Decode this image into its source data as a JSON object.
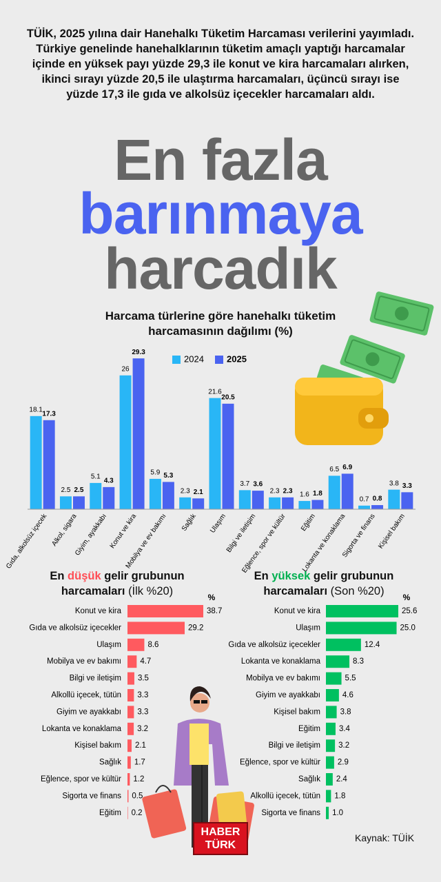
{
  "intro": "TÜİK, 2025 yılına dair Hanehalkı Tüketim Harcaması verilerini yayımladı. Türkiye genelinde hanehalklarının tüketim amaçlı yaptığı harcamalar içinde en yüksek payı yüzde 29,3 ile konut ve kira harcamaları alırken, ikinci sırayı yüzde 20,5 ile ulaştırma harcamaları, üçüncü sırayı ise yüzde 17,3 ile gıda ve alkolsüz içecekler harcamaları aldı.",
  "headline": [
    "En fazla",
    "barınmaya",
    "harcadık"
  ],
  "chart_data": [
    {
      "type": "bar",
      "title": "Harcama türlerine göre hanehalkı tüketim harcamasının dağılımı (%)",
      "categories": [
        "Gıda, alkolsüz içecek",
        "Alkol, sigara",
        "Giyim, ayakkabı",
        "Konut ve kira",
        "Mobilya ve ev bakımı",
        "Sağlık",
        "Ulaşım",
        "Bilgi ve iletişim",
        "Eğlence, spor ve kültür",
        "Eğitim",
        "Lokanta ve konaklama",
        "Sigorta ve finans",
        "Kişisel bakım"
      ],
      "series": [
        {
          "name": "2024",
          "color": "#29b6f6",
          "values": [
            18.1,
            2.5,
            5.1,
            26,
            5.9,
            2.3,
            21.6,
            3.7,
            2.3,
            1.6,
            6.5,
            0.7,
            3.8
          ]
        },
        {
          "name": "2025",
          "color": "#4a63f0",
          "values": [
            17.3,
            2.5,
            4.3,
            29.3,
            5.3,
            2.1,
            20.5,
            3.6,
            2.3,
            1.8,
            6.9,
            0.8,
            3.3
          ]
        }
      ]
    },
    {
      "type": "hbar",
      "title": {
        "prefix": "En",
        "highlight": "düşük",
        "rest": "gelir grubunun harcamaları",
        "note": "(İlk %20)"
      },
      "unit": "%",
      "color": "#ff5a5f",
      "categories": [
        "Konut ve kira",
        "Gıda ve alkolsüz içecekler",
        "Ulaşım",
        "Mobilya ve ev bakımı",
        "Bilgi ve iletişim",
        "Alkollü içecek, tütün",
        "Giyim ve ayakkabı",
        "Lokanta ve konaklama",
        "Kişisel bakım",
        "Sağlık",
        "Eğlence, spor ve kültür",
        "Sigorta ve finans",
        "Eğitim"
      ],
      "values": [
        38.7,
        29.2,
        8.6,
        4.7,
        3.5,
        3.3,
        3.3,
        3.2,
        2.1,
        1.7,
        1.2,
        0.5,
        0.2
      ]
    },
    {
      "type": "hbar",
      "title": {
        "prefix": "En",
        "highlight": "yüksek",
        "rest": "gelir grubunun harcamaları",
        "note": "(Son %20)"
      },
      "unit": "%",
      "color": "#00c060",
      "categories": [
        "Konut ve kira",
        "Ulaşım",
        "Gıda ve alkolsüz içecekler",
        "Lokanta ve konaklama",
        "Mobilya ve ev bakımı",
        "Giyim ve ayakkabı",
        "Kişisel bakım",
        "Eğitim",
        "Bilgi ve iletişim",
        "Eğlence, spor ve kültür",
        "Sağlık",
        "Alkollü içecek, tütün",
        "Sigorta ve finans"
      ],
      "values": [
        25.6,
        25.0,
        12.4,
        8.3,
        5.5,
        4.6,
        3.8,
        3.4,
        3.2,
        2.9,
        2.4,
        1.8,
        1.0
      ],
      "value_labels": [
        "25.6",
        "25.0",
        "12.4",
        "8.3",
        "5.5",
        "4.6",
        "3.8",
        "3.4",
        "3.2",
        "2.9",
        "2.4",
        "1.8",
        "1.0"
      ]
    }
  ],
  "source": "Kaynak: TÜİK",
  "logo": [
    "HABER",
    "TÜRK"
  ]
}
